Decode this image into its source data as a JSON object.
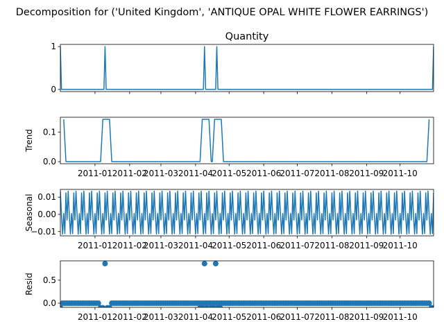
{
  "figure": {
    "suptitle": "Decomposition for ('United Kingdom', 'ANTIQUE OPAL WHITE FLOWER EARRINGS')"
  },
  "x_ticks": [
    "2011-01",
    "2011-02",
    "2011-03",
    "2011-04",
    "2011-05",
    "2011-06",
    "2011-07",
    "2011-08",
    "2011-09",
    "2011-10"
  ],
  "x_tick_dates": [
    "2011-01-01",
    "2011-02-01",
    "2011-03-01",
    "2011-04-01",
    "2011-05-01",
    "2011-06-01",
    "2011-07-01",
    "2011-08-01",
    "2011-09-01",
    "2011-10-01"
  ],
  "colors": {
    "series": "#1f77b4",
    "axes": "#000000",
    "background": "#ffffff"
  },
  "chart_data": [
    {
      "type": "line",
      "title": "Quantity",
      "ylabel": "",
      "xlim": [
        "2010-12-01",
        "2011-10-31"
      ],
      "ylim": [
        -0.05,
        1.05
      ],
      "yticks": [
        0,
        1
      ],
      "ytick_labels": [
        "0",
        "1"
      ],
      "x": [
        "2010-12-01",
        "2010-12-02",
        "2011-01-09",
        "2011-01-10",
        "2011-01-11",
        "2011-04-08",
        "2011-04-09",
        "2011-04-10",
        "2011-04-19",
        "2011-04-20",
        "2011-04-21",
        "2011-10-30",
        "2011-10-31"
      ],
      "y": [
        1,
        0,
        0,
        1,
        0,
        0,
        1,
        0,
        0,
        1,
        0,
        0,
        1
      ]
    },
    {
      "type": "line",
      "title": "",
      "ylabel": "Trend",
      "xlim": [
        "2010-12-01",
        "2011-10-31"
      ],
      "ylim": [
        -0.007,
        0.15
      ],
      "yticks": [
        0.0,
        0.1
      ],
      "ytick_labels": [
        "0.0",
        "0.1"
      ],
      "x": [
        "2010-12-04",
        "2010-12-06",
        "2011-01-06",
        "2011-01-08",
        "2011-01-14",
        "2011-01-16",
        "2011-04-05",
        "2011-04-07",
        "2011-04-13",
        "2011-04-15",
        "2011-04-16",
        "2011-04-18",
        "2011-04-24",
        "2011-04-26",
        "2011-10-25",
        "2011-10-27"
      ],
      "y": [
        0.1429,
        0,
        0,
        0.1429,
        0.1429,
        0,
        0,
        0.1429,
        0.1429,
        0,
        0,
        0.1429,
        0.1429,
        0,
        0,
        0.1429
      ]
    },
    {
      "type": "line",
      "title": "",
      "ylabel": "Seasonal",
      "xlim": [
        "2010-12-01",
        "2011-10-31"
      ],
      "ylim": [
        -0.0125,
        0.0145
      ],
      "yticks": [
        -0.01,
        0.0,
        0.01
      ],
      "ytick_labels": [
        "−0.01",
        "0.00",
        "0.01"
      ],
      "period_days": 7,
      "x_start": "2010-12-01",
      "x_end": "2011-10-31",
      "weekly_pattern": [
        0.0135,
        -0.0005,
        -0.0115,
        0.0005,
        -0.0112,
        0.0125,
        -0.0033
      ]
    },
    {
      "type": "scatter",
      "title": "",
      "ylabel": "Resid",
      "xlim": [
        "2010-12-01",
        "2011-10-31"
      ],
      "ylim": [
        -0.09,
        0.92
      ],
      "yticks": [
        0.0,
        0.5
      ],
      "ytick_labels": [
        "0.0",
        "0.5"
      ],
      "x_start": "2010-12-01",
      "x_end": "2011-10-31",
      "step_days": 2,
      "baseline": 0.0,
      "special_points": [
        {
          "x": "2010-12-01",
          "y": -0.1
        },
        {
          "x": "2011-01-06",
          "y": -0.1
        },
        {
          "x": "2011-01-08",
          "y": -0.1
        },
        {
          "x": "2011-01-10",
          "y": 0.86
        },
        {
          "x": "2011-01-12",
          "y": -0.1
        },
        {
          "x": "2011-01-14",
          "y": -0.1
        },
        {
          "x": "2011-04-05",
          "y": -0.1
        },
        {
          "x": "2011-04-07",
          "y": -0.1
        },
        {
          "x": "2011-04-09",
          "y": 0.86
        },
        {
          "x": "2011-04-11",
          "y": -0.1
        },
        {
          "x": "2011-04-15",
          "y": -0.1
        },
        {
          "x": "2011-04-17",
          "y": -0.1
        },
        {
          "x": "2011-04-19",
          "y": 0.86
        },
        {
          "x": "2011-04-21",
          "y": -0.1
        },
        {
          "x": "2011-04-23",
          "y": -0.1
        },
        {
          "x": "2011-10-29",
          "y": -0.1
        },
        {
          "x": "2011-10-31",
          "y": -0.1
        }
      ]
    }
  ]
}
